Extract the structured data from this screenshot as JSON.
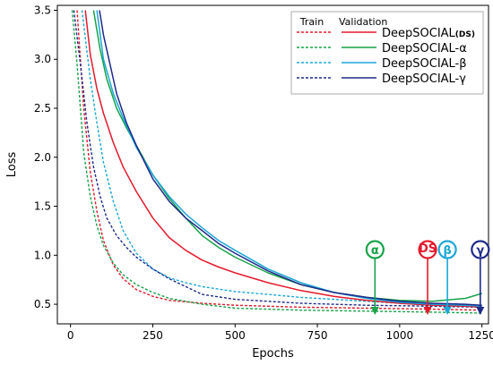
{
  "chart_data": {
    "type": "line",
    "xlabel": "Epochs",
    "ylabel": "Loss",
    "xlim": [
      -40,
      1270
    ],
    "ylim": [
      0.3,
      3.55
    ],
    "xticks": [
      0,
      250,
      500,
      750,
      1000,
      1250
    ],
    "xtick_labels": [
      "0",
      "250",
      "500",
      "750",
      "1000",
      "1250"
    ],
    "yticks": [
      0.5,
      1.0,
      1.5,
      2.0,
      2.5,
      3.0,
      3.5
    ],
    "ytick_labels": [
      "0.5",
      "1.0",
      "1.5",
      "2.0",
      "2.5",
      "3.0",
      "3.5"
    ],
    "grid": false,
    "legend": {
      "placement": "top-right",
      "train_header": "Train",
      "validation_header": "Validation",
      "entries": [
        {
          "label_main": "DeepSOCIAL",
          "label_sub": "(DS)",
          "color": "#e41a2c"
        },
        {
          "label_main": "DeepSOCIAL-α",
          "label_sub": "",
          "color": "#17a34a"
        },
        {
          "label_main": "DeepSOCIAL-β",
          "label_sub": "",
          "color": "#1ba7d8"
        },
        {
          "label_main": "DeepSOCIAL-γ",
          "label_sub": "",
          "color": "#1f2a8a"
        }
      ]
    },
    "series": [
      {
        "name": "DeepSOCIAL(DS) Train",
        "style": "dashed",
        "color": "#e41a2c",
        "x": [
          20,
          40,
          60,
          80,
          100,
          130,
          160,
          200,
          250,
          300,
          400,
          500,
          700,
          900,
          1100,
          1250
        ],
        "y": [
          3.5,
          2.5,
          1.85,
          1.45,
          1.15,
          0.9,
          0.76,
          0.65,
          0.58,
          0.54,
          0.51,
          0.49,
          0.47,
          0.46,
          0.45,
          0.44
        ]
      },
      {
        "name": "DeepSOCIAL-α Train",
        "style": "dashed",
        "color": "#17a34a",
        "x": [
          5,
          20,
          40,
          60,
          80,
          100,
          130,
          160,
          200,
          250,
          300,
          400,
          500,
          700,
          900,
          1100,
          1250
        ],
        "y": [
          3.5,
          2.95,
          2.05,
          1.6,
          1.3,
          1.1,
          0.92,
          0.8,
          0.7,
          0.62,
          0.56,
          0.5,
          0.46,
          0.44,
          0.43,
          0.42,
          0.41
        ]
      },
      {
        "name": "DeepSOCIAL-β Train",
        "style": "dashed",
        "color": "#1ba7d8",
        "x": [
          35,
          60,
          80,
          100,
          130,
          160,
          200,
          250,
          300,
          350,
          400,
          500,
          600,
          700,
          800,
          900,
          1000,
          1100,
          1250
        ],
        "y": [
          3.5,
          2.8,
          2.35,
          1.95,
          1.55,
          1.25,
          1.02,
          0.86,
          0.77,
          0.72,
          0.68,
          0.63,
          0.6,
          0.57,
          0.55,
          0.53,
          0.51,
          0.49,
          0.47
        ]
      },
      {
        "name": "DeepSOCIAL-γ Train",
        "style": "dashed",
        "color": "#1f2a8a",
        "x": [
          10,
          30,
          50,
          70,
          90,
          110,
          140,
          170,
          200,
          250,
          300,
          350,
          400,
          500,
          700,
          900,
          1100,
          1250
        ],
        "y": [
          3.5,
          2.95,
          2.35,
          1.9,
          1.6,
          1.38,
          1.2,
          1.08,
          0.98,
          0.86,
          0.76,
          0.68,
          0.6,
          0.55,
          0.51,
          0.49,
          0.48,
          0.47
        ]
      },
      {
        "name": "DeepSOCIAL(DS) Validation",
        "style": "solid",
        "color": "#e41a2c",
        "x": [
          45,
          60,
          80,
          100,
          130,
          160,
          200,
          250,
          300,
          350,
          400,
          450,
          500,
          600,
          700,
          800,
          900,
          1000,
          1100,
          1200,
          1250
        ],
        "y": [
          3.5,
          3.05,
          2.7,
          2.45,
          2.15,
          1.9,
          1.65,
          1.38,
          1.18,
          1.05,
          0.95,
          0.88,
          0.82,
          0.72,
          0.64,
          0.58,
          0.54,
          0.51,
          0.49,
          0.48,
          0.47
        ]
      },
      {
        "name": "DeepSOCIAL-α Validation",
        "style": "solid",
        "color": "#17a34a",
        "x": [
          70,
          90,
          110,
          140,
          170,
          200,
          250,
          300,
          350,
          400,
          450,
          500,
          600,
          700,
          800,
          900,
          1000,
          1100,
          1200,
          1250
        ],
        "y": [
          3.5,
          3.1,
          2.8,
          2.5,
          2.3,
          2.12,
          1.82,
          1.58,
          1.38,
          1.2,
          1.08,
          0.98,
          0.82,
          0.7,
          0.62,
          0.57,
          0.54,
          0.53,
          0.56,
          0.61
        ]
      },
      {
        "name": "DeepSOCIAL-β Validation",
        "style": "solid",
        "color": "#1ba7d8",
        "x": [
          80,
          100,
          130,
          160,
          200,
          250,
          300,
          350,
          400,
          450,
          500,
          600,
          700,
          800,
          900,
          1000,
          1100,
          1200,
          1250
        ],
        "y": [
          3.5,
          3.0,
          2.65,
          2.4,
          2.1,
          1.82,
          1.6,
          1.42,
          1.28,
          1.15,
          1.05,
          0.86,
          0.72,
          0.62,
          0.56,
          0.52,
          0.5,
          0.49,
          0.48
        ]
      },
      {
        "name": "DeepSOCIAL-γ Validation",
        "style": "solid",
        "color": "#1f2a8a",
        "x": [
          88,
          100,
          120,
          140,
          170,
          200,
          250,
          300,
          350,
          400,
          450,
          500,
          600,
          700,
          800,
          900,
          1000,
          1100,
          1200,
          1250
        ],
        "y": [
          3.5,
          3.25,
          2.95,
          2.65,
          2.35,
          2.12,
          1.78,
          1.55,
          1.38,
          1.25,
          1.12,
          1.02,
          0.84,
          0.7,
          0.62,
          0.57,
          0.53,
          0.51,
          0.5,
          0.49
        ]
      }
    ],
    "markers": [
      {
        "label": "α",
        "x": 925,
        "color": "#17a34a"
      },
      {
        "label": "DS",
        "x": 1085,
        "color": "#e41a2c"
      },
      {
        "label": "β",
        "x": 1145,
        "color": "#1ba7d8"
      },
      {
        "label": "γ",
        "x": 1245,
        "color": "#1f2a8a"
      }
    ]
  }
}
